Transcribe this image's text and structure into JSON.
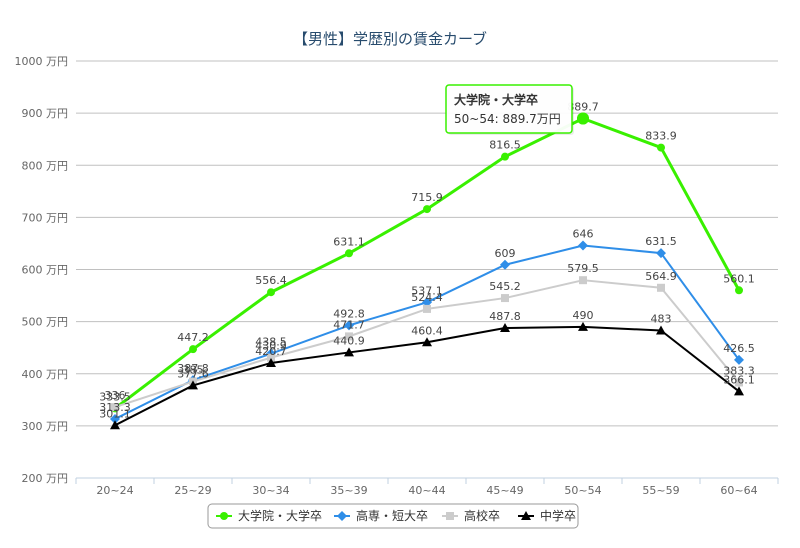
{
  "chart_data": {
    "type": "line",
    "title": "【男性】学歴別の賃金カーブ",
    "categories": [
      "20~24",
      "25~29",
      "30~34",
      "35~39",
      "40~44",
      "45~49",
      "50~54",
      "55~59",
      "60~64"
    ],
    "ylim": [
      200,
      1000
    ],
    "yticks": [
      200,
      300,
      400,
      500,
      600,
      700,
      800,
      900,
      1000
    ],
    "ytick_suffix": " 万円",
    "grid": true,
    "legend_position": "bottom",
    "series": [
      {
        "name": "大学院・大学卒",
        "color": "#39f000",
        "marker": "circle",
        "values": [
          333.5,
          447.2,
          556.4,
          631.1,
          715.9,
          816.5,
          889.7,
          833.9,
          560.1
        ],
        "labels": [
          "333.5",
          "447.2",
          "556.4",
          "631.1",
          "715.9",
          "816.5",
          "889.7",
          "833.9",
          "560.1"
        ]
      },
      {
        "name": "高専・短大卒",
        "color": "#2f8ee8",
        "marker": "diamond",
        "values": [
          313.3,
          387.8,
          438.5,
          492.8,
          537.1,
          609,
          646,
          631.5,
          426.5
        ],
        "labels": [
          "313.3",
          "387.8",
          "438.5",
          "492.8",
          "537.1",
          "609",
          "646",
          "631.5",
          "426.5"
        ]
      },
      {
        "name": "高校卒",
        "color": "#cccccc",
        "marker": "square",
        "values": [
          336,
          385,
          430.9,
          471.7,
          524.4,
          545.2,
          579.5,
          564.9,
          383.3
        ],
        "labels": [
          "336",
          "385",
          "430.9",
          "471.7",
          "524.4",
          "545.2",
          "579.5",
          "564.9",
          "383.3"
        ]
      },
      {
        "name": "中学卒",
        "color": "#000000",
        "marker": "triangle",
        "values": [
          301.1,
          377.6,
          420.7,
          440.9,
          460.4,
          487.8,
          490,
          483,
          366.1
        ],
        "labels": [
          "301.1",
          "377.6",
          "420.7",
          "440.9",
          "460.4",
          "487.8",
          "490",
          "483",
          "366.1"
        ]
      }
    ],
    "tooltip": {
      "series_index": 0,
      "point_index": 6,
      "title": "大学院・大学卒",
      "text": "50~54: 889.7万円"
    }
  }
}
